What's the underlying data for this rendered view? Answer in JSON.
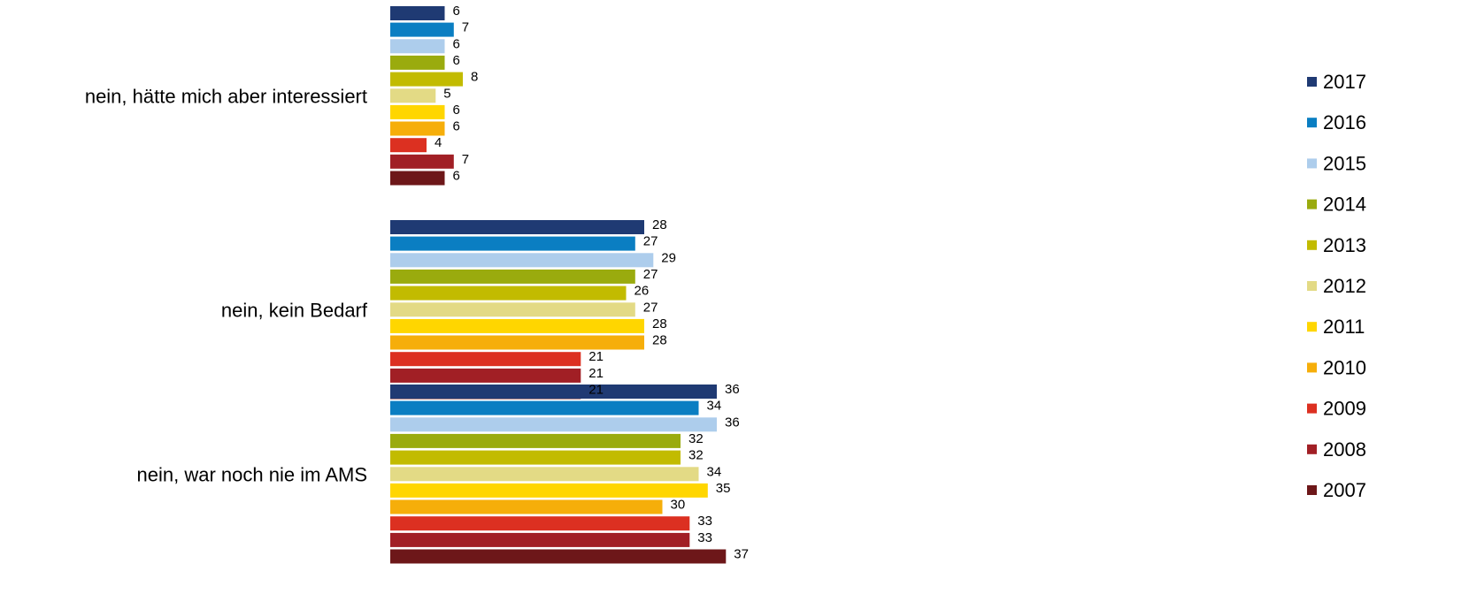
{
  "chart_data": {
    "type": "bar",
    "orientation": "horizontal",
    "title": "",
    "xlabel": "",
    "ylabel": "",
    "grid": false,
    "legend_position": "right",
    "xlim": [
      0,
      40
    ],
    "categories": [
      "nein, hätte mich aber interessiert",
      "nein, kein Bedarf",
      "nein, war noch nie im AMS"
    ],
    "series": [
      {
        "name": "2017",
        "color": "#1f3a73",
        "values": [
          6,
          28,
          36
        ]
      },
      {
        "name": "2016",
        "color": "#0a7ec2",
        "values": [
          7,
          27,
          34
        ]
      },
      {
        "name": "2015",
        "color": "#adcdec",
        "values": [
          6,
          29,
          36
        ]
      },
      {
        "name": "2014",
        "color": "#9aab0e",
        "values": [
          6,
          27,
          32
        ]
      },
      {
        "name": "2013",
        "color": "#c2bb00",
        "values": [
          8,
          26,
          32
        ]
      },
      {
        "name": "2012",
        "color": "#e3da85",
        "values": [
          5,
          27,
          34
        ]
      },
      {
        "name": "2011",
        "color": "#ffd600",
        "values": [
          6,
          28,
          35
        ]
      },
      {
        "name": "2010",
        "color": "#f6ae0a",
        "values": [
          6,
          28,
          30
        ]
      },
      {
        "name": "2009",
        "color": "#dc3021",
        "values": [
          4,
          21,
          33
        ]
      },
      {
        "name": "2008",
        "color": "#a11f25",
        "values": [
          7,
          21,
          33
        ]
      },
      {
        "name": "2007",
        "color": "#6d1719",
        "values": [
          6,
          21,
          37
        ]
      }
    ]
  }
}
